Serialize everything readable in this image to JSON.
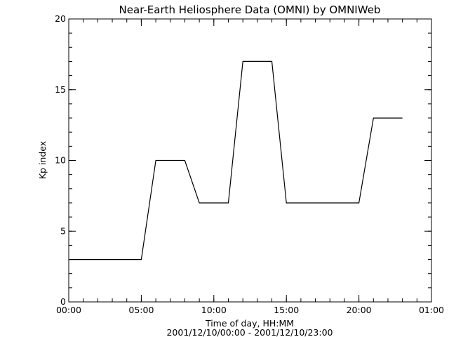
{
  "chart_data": {
    "type": "line",
    "title": "Near-Earth Heliosphere Data (OMNI) by OMNIWeb",
    "xlabel": "Time of day, HH:MM",
    "xlabel2": "2001/12/10/00:00 - 2001/12/10/23:00",
    "ylabel": "Kp index",
    "x_unit": "hours since 2001/12/10 00:00",
    "xlim": [
      0,
      25
    ],
    "ylim": [
      0,
      20
    ],
    "x_ticks": [
      {
        "value": 0,
        "label": "00:00"
      },
      {
        "value": 5,
        "label": "05:00"
      },
      {
        "value": 10,
        "label": "10:00"
      },
      {
        "value": 15,
        "label": "15:00"
      },
      {
        "value": 20,
        "label": "20:00"
      },
      {
        "value": 25,
        "label": "01:00"
      }
    ],
    "x_minor_step": 1,
    "y_ticks": [
      {
        "value": 0,
        "label": "0"
      },
      {
        "value": 5,
        "label": "5"
      },
      {
        "value": 10,
        "label": "10"
      },
      {
        "value": 15,
        "label": "15"
      },
      {
        "value": 20,
        "label": "20"
      }
    ],
    "y_minor_step": 1,
    "grid": false,
    "series": [
      {
        "name": "Kp index",
        "color": "#000000",
        "x": [
          0,
          1,
          2,
          3,
          4,
          5,
          6,
          7,
          8,
          9,
          10,
          11,
          12,
          13,
          14,
          15,
          16,
          17,
          18,
          19,
          20,
          21,
          22,
          23
        ],
        "y": [
          3,
          3,
          3,
          3,
          3,
          3,
          10,
          10,
          10,
          7,
          7,
          7,
          17,
          17,
          17,
          7,
          7,
          7,
          7,
          7,
          7,
          13,
          13,
          13
        ]
      }
    ]
  }
}
